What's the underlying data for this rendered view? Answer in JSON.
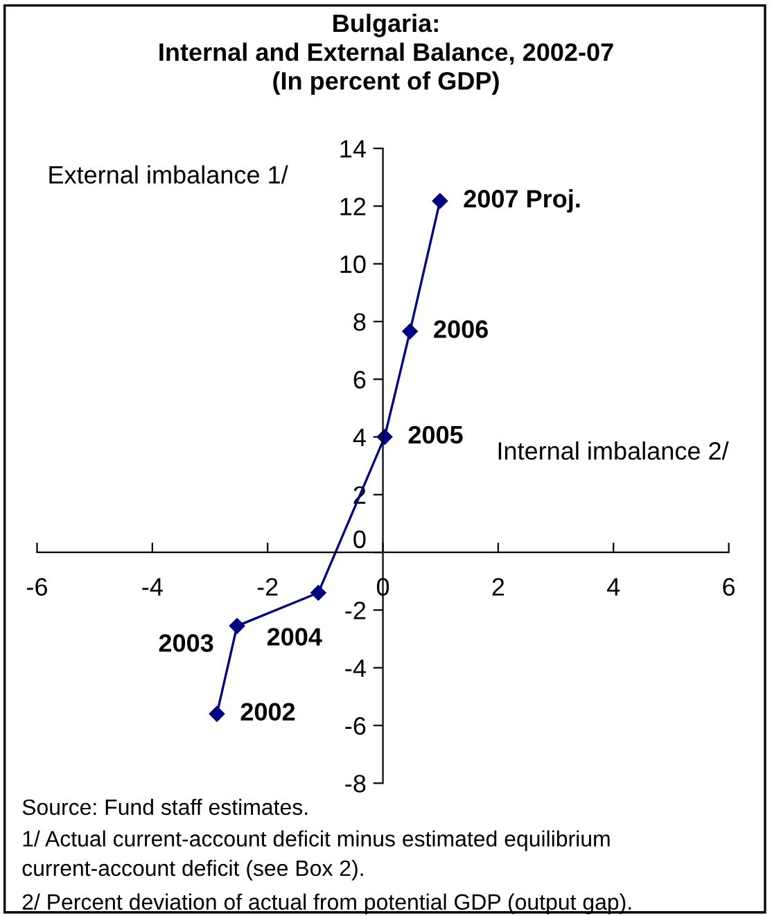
{
  "chart_data": {
    "type": "line",
    "title": "Bulgaria:\nInternal and External Balance, 2002-07\n(In percent of GDP)",
    "xlabel": "Internal imbalance 2/",
    "ylabel": "External imbalance 1/",
    "x": [
      -2.88,
      -2.53,
      -1.12,
      0.03,
      0.47,
      0.99
    ],
    "series": [
      {
        "color": "#000080",
        "values": [
          -5.6,
          -2.55,
          -1.4,
          4.0,
          7.66,
          12.18
        ]
      }
    ],
    "xlim": [
      -6,
      6
    ],
    "xticks": [
      -6,
      -4,
      -2,
      0,
      2,
      4,
      6
    ],
    "ylim": [
      -8,
      14
    ],
    "yticks": [
      -8,
      -6,
      -4,
      -2,
      0,
      2,
      4,
      6,
      8,
      10,
      12,
      14
    ],
    "marker": "diamond",
    "line_style": "solid",
    "grid": false,
    "legend": false,
    "annotations": [
      {
        "text": "2002",
        "x": -2.88,
        "y": -5.6
      },
      {
        "text": "2003",
        "x": -2.53,
        "y": -2.55
      },
      {
        "text": "2004",
        "x": -1.12,
        "y": -1.4
      },
      {
        "text": "2005",
        "x": 0.03,
        "y": 4.0
      },
      {
        "text": "2006",
        "x": 0.47,
        "y": 7.66
      },
      {
        "text": "2007 Proj.",
        "x": 0.99,
        "y": 12.18
      },
      "Source: Fund staff estimates.",
      "1/ Actual current-account deficit minus estimated equilibrium\ncurrent-account deficit (see Box 2).",
      "2/ Percent deviation of actual from potential GDP (output gap)."
    ]
  }
}
